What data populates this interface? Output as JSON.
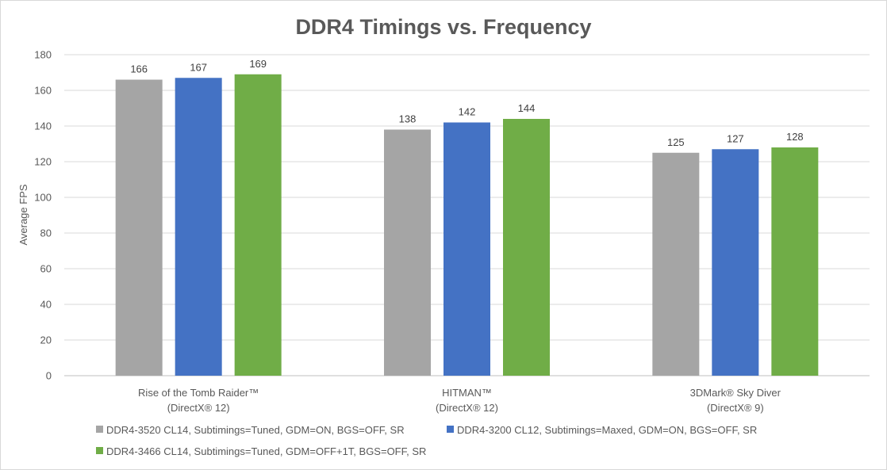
{
  "chart_data": {
    "type": "bar",
    "title": "DDR4 Timings vs. Frequency",
    "xlabel": "",
    "ylabel": "Average FPS",
    "ylim": [
      0,
      180
    ],
    "yticks": [
      0,
      20,
      40,
      60,
      80,
      100,
      120,
      140,
      160,
      180
    ],
    "grid": true,
    "legend_position": "bottom",
    "categories": [
      [
        "Rise of the Tomb Raider™",
        "(DirectX® 12)"
      ],
      [
        "HITMAN™",
        "(DirectX® 12)"
      ],
      [
        "3DMark® Sky Diver",
        "(DirectX® 9)"
      ]
    ],
    "series": [
      {
        "name": "DDR4-3520 CL14, Subtimings=Tuned, GDM=ON, BGS=OFF, SR",
        "color": "#a5a5a5",
        "values": [
          166,
          138,
          125
        ]
      },
      {
        "name": "DDR4-3200 CL12, Subtimings=Maxed, GDM=ON, BGS=OFF, SR",
        "color": "#4472c4",
        "values": [
          167,
          142,
          127
        ]
      },
      {
        "name": "DDR4-3466 CL14, Subtimings=Tuned, GDM=OFF+1T, BGS=OFF, SR",
        "color": "#70ad47",
        "values": [
          169,
          144,
          128
        ]
      }
    ]
  }
}
